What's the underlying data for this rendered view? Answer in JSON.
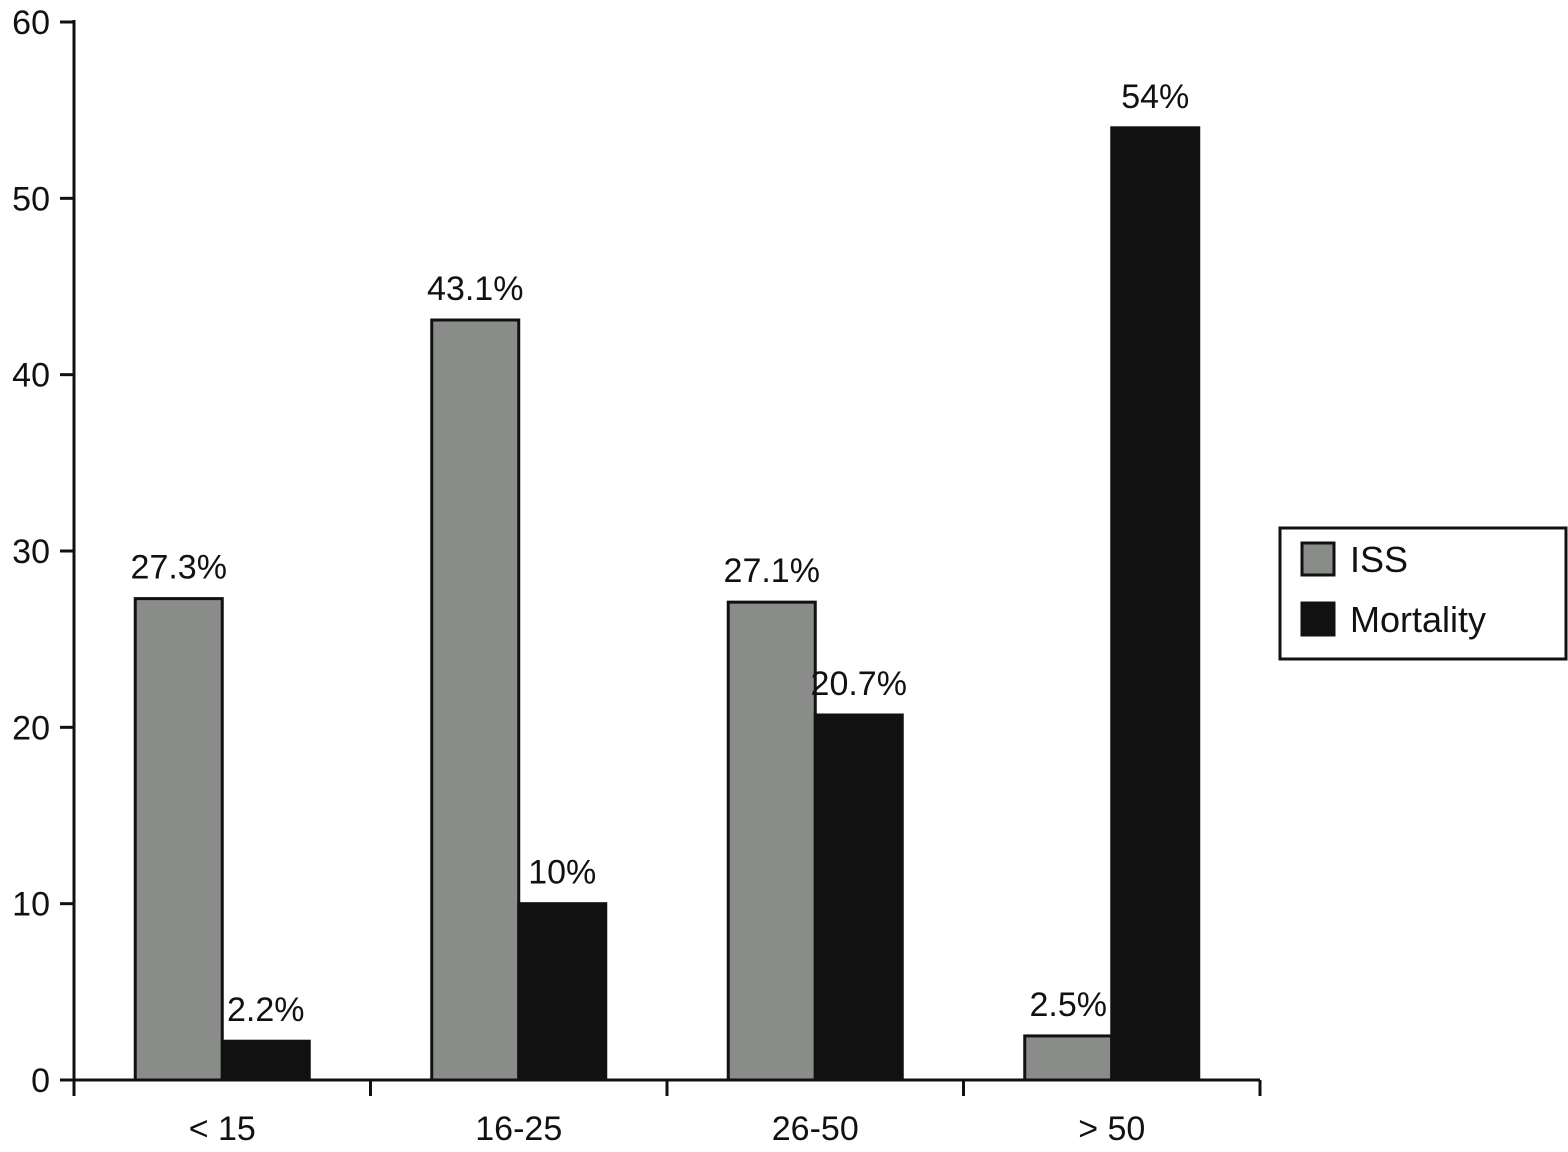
{
  "chart_data": {
    "type": "bar",
    "categories": [
      "< 15",
      "16-25",
      "26-50",
      "> 50"
    ],
    "series": [
      {
        "name": "ISS",
        "values": [
          27.3,
          43.1,
          27.1,
          2.5
        ],
        "labels": [
          "27.3%",
          "43.1%",
          "27.1%",
          "2.5%"
        ],
        "color": "#8a8c8a"
      },
      {
        "name": "Mortality",
        "values": [
          2.2,
          10,
          20.7,
          54
        ],
        "labels": [
          "2.2%",
          "10%",
          "20.7%",
          "54%"
        ],
        "color": "#111111"
      }
    ],
    "ylim": [
      0,
      60
    ],
    "yticks": [
      0,
      10,
      20,
      30,
      40,
      50,
      60
    ],
    "title": "",
    "xlabel": "",
    "ylabel": "",
    "legend_position": "right",
    "grid": false
  }
}
